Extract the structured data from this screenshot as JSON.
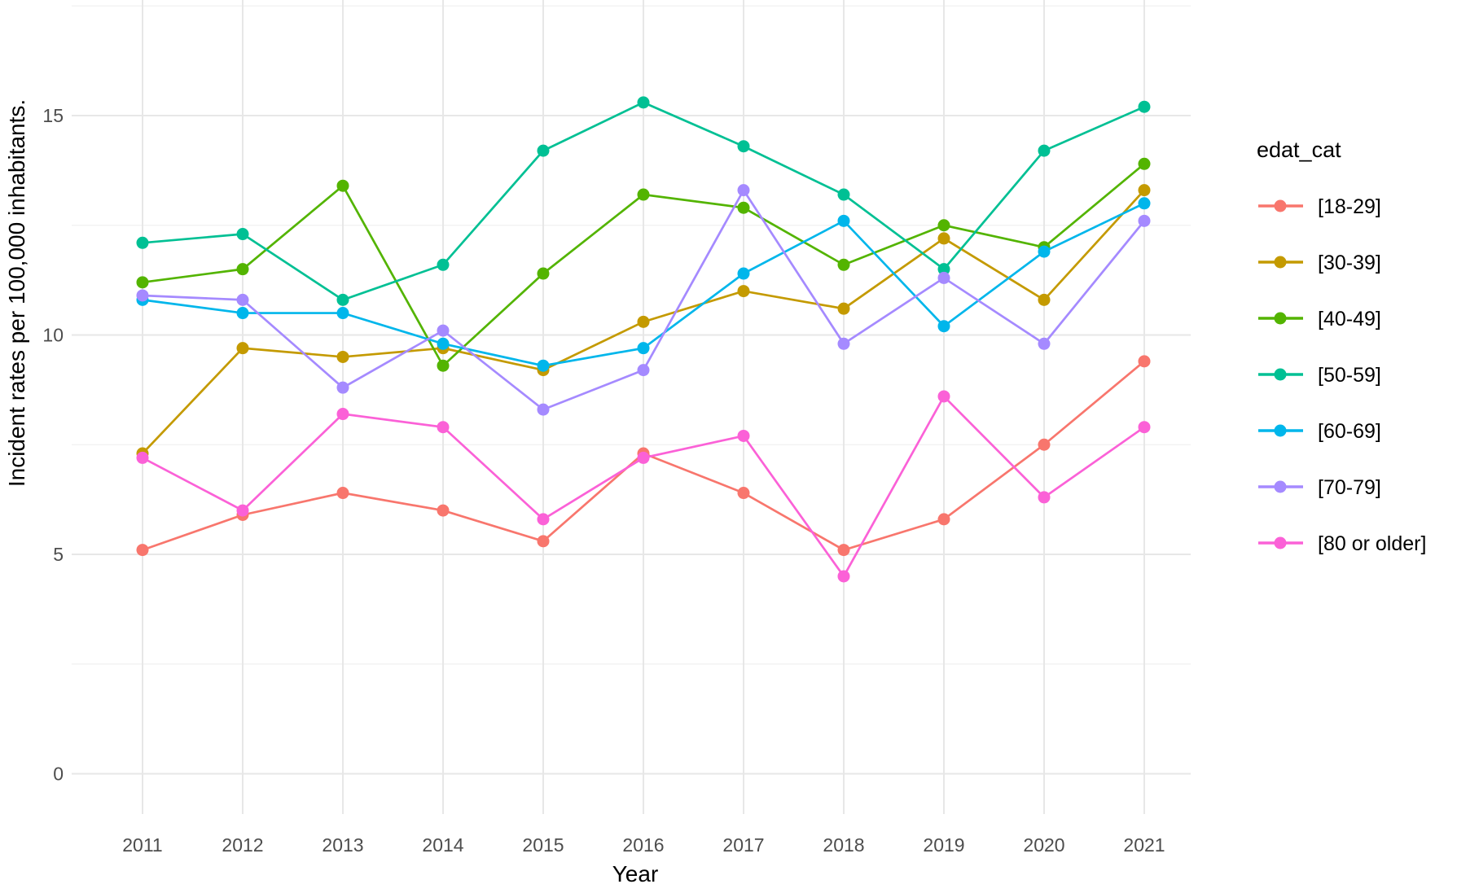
{
  "x_axis": {
    "title": "Year",
    "ticks": [
      "2011",
      "2012",
      "2013",
      "2014",
      "2015",
      "2016",
      "2017",
      "2018",
      "2019",
      "2020",
      "2021"
    ]
  },
  "y_axis": {
    "title": "Incident rates per 100,000 inhabitants.",
    "ticks": [
      0,
      5,
      10,
      15
    ],
    "minor_ticks": [
      2.5,
      7.5,
      12.5,
      17.5
    ]
  },
  "legend": {
    "title": "edat_cat"
  },
  "colors": {
    "grid_major": "#e7e7e7",
    "grid_minor": "#f0f0f0",
    "axis_text": "#4d4d4d"
  },
  "chart_data": {
    "type": "line",
    "x": [
      2011,
      2012,
      2013,
      2014,
      2015,
      2016,
      2017,
      2018,
      2019,
      2020,
      2021
    ],
    "xlabel": "Year",
    "ylabel": "Incident rates per 100,000 inhabitants.",
    "ylim": [
      0,
      17.5
    ],
    "grid": true,
    "legend_position": "right",
    "series": [
      {
        "name": "[18-29]",
        "color": "#F8766D",
        "values": [
          5.1,
          5.9,
          6.4,
          6.0,
          5.3,
          7.3,
          6.4,
          5.1,
          5.8,
          7.5,
          9.4
        ]
      },
      {
        "name": "[30-39]",
        "color": "#C49A00",
        "values": [
          7.3,
          9.7,
          9.5,
          9.7,
          9.2,
          10.3,
          11.0,
          10.6,
          12.2,
          10.8,
          13.3
        ]
      },
      {
        "name": "[40-49]",
        "color": "#53B400",
        "values": [
          11.2,
          11.5,
          13.4,
          9.3,
          11.4,
          13.2,
          12.9,
          11.6,
          12.5,
          12.0,
          13.9
        ]
      },
      {
        "name": "[50-59]",
        "color": "#00C094",
        "values": [
          12.1,
          12.3,
          10.8,
          11.6,
          14.2,
          15.3,
          14.3,
          13.2,
          11.5,
          14.2,
          15.2
        ]
      },
      {
        "name": "[60-69]",
        "color": "#00B6EB",
        "values": [
          10.8,
          10.5,
          10.5,
          9.8,
          9.3,
          9.7,
          11.4,
          12.6,
          10.2,
          11.9,
          13.0
        ]
      },
      {
        "name": "[70-79]",
        "color": "#A58AFF",
        "values": [
          10.9,
          10.8,
          8.8,
          10.1,
          8.3,
          9.2,
          13.3,
          9.8,
          11.3,
          9.8,
          12.6
        ]
      },
      {
        "name": "[80 or older]",
        "color": "#FB61D7",
        "values": [
          7.2,
          6.0,
          8.2,
          7.9,
          5.8,
          7.2,
          7.7,
          4.5,
          8.6,
          6.3,
          7.9
        ]
      }
    ]
  }
}
